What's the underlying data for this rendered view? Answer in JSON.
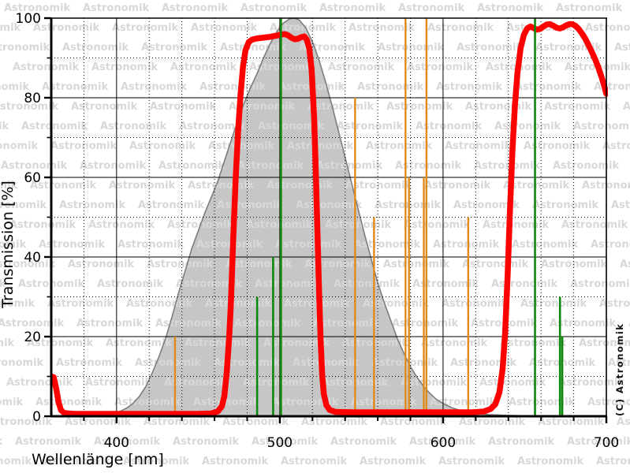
{
  "watermark": {
    "text": "Astronomik"
  },
  "copyright": "(C) Astronomik",
  "chart_data": {
    "type": "line",
    "xlabel": "Wellenlänge [nm]",
    "ylabel": "Transmission [%]",
    "xlim": [
      360,
      700
    ],
    "ylim": [
      0,
      100
    ],
    "x_major_ticks": [
      400,
      500,
      600,
      700
    ],
    "x_minor_tick_step_nm": 20,
    "y_major_ticks": [
      0,
      20,
      40,
      60,
      80,
      100
    ],
    "y_minor_tick_step": 10,
    "grid": "major solid black, minor dotted black",
    "legend": "none",
    "colors": {
      "filter_curve": "#ff0000",
      "emission_lines_green": "#0d870d",
      "pollution_lines_orange": "#e08a18",
      "eye_sensitivity_fill": "#c6c6c6",
      "eye_sensitivity_outline": "#7d7d7d",
      "watermark_gray": "#d8d8d8"
    },
    "series": [
      {
        "name": "filter-transmission-curve",
        "type": "line",
        "color": "#ff0000",
        "points": [
          [
            360,
            10
          ],
          [
            361.5,
            9.8
          ],
          [
            363,
            7
          ],
          [
            364.5,
            3.5
          ],
          [
            366,
            1.5
          ],
          [
            368,
            0.8
          ],
          [
            374,
            0.6
          ],
          [
            390,
            0.6
          ],
          [
            410,
            0.6
          ],
          [
            430,
            0.6
          ],
          [
            450,
            0.6
          ],
          [
            458,
            0.7
          ],
          [
            462,
            1.2
          ],
          [
            464.5,
            2.5
          ],
          [
            466,
            5
          ],
          [
            467.5,
            11
          ],
          [
            469,
            20
          ],
          [
            470,
            28
          ],
          [
            471.5,
            45
          ],
          [
            473,
            60
          ],
          [
            474.5,
            72
          ],
          [
            476,
            81
          ],
          [
            477.5,
            88
          ],
          [
            479,
            92
          ],
          [
            481,
            94
          ],
          [
            483,
            94.6
          ],
          [
            486,
            94.9
          ],
          [
            490,
            95.1
          ],
          [
            494,
            95.3
          ],
          [
            498,
            95.6
          ],
          [
            501,
            95.9
          ],
          [
            503,
            96
          ],
          [
            505,
            95.7
          ],
          [
            507,
            95.1
          ],
          [
            509,
            94.7
          ],
          [
            511,
            94.8
          ],
          [
            513,
            95.2
          ],
          [
            515,
            95.4
          ],
          [
            516.5,
            94.6
          ],
          [
            518,
            92.5
          ],
          [
            519.5,
            87
          ],
          [
            521,
            75
          ],
          [
            522,
            62
          ],
          [
            523,
            47
          ],
          [
            524,
            32
          ],
          [
            525,
            19
          ],
          [
            526,
            10
          ],
          [
            527,
            5.5
          ],
          [
            528.5,
            2.8
          ],
          [
            530.5,
            1.6
          ],
          [
            534,
            1.1
          ],
          [
            545,
            1
          ],
          [
            565,
            1
          ],
          [
            585,
            1
          ],
          [
            605,
            1
          ],
          [
            618,
            1
          ],
          [
            625,
            1.2
          ],
          [
            629,
            1.8
          ],
          [
            632,
            3
          ],
          [
            634.5,
            6
          ],
          [
            636.5,
            12
          ],
          [
            638,
            21
          ],
          [
            639.5,
            35
          ],
          [
            641,
            52
          ],
          [
            642.5,
            67
          ],
          [
            644,
            78
          ],
          [
            645.5,
            86
          ],
          [
            647.5,
            92.5
          ],
          [
            649.5,
            95.8
          ],
          [
            651.5,
            97.4
          ],
          [
            653.5,
            97.9
          ],
          [
            655.5,
            97.5
          ],
          [
            657.5,
            97.1
          ],
          [
            659.5,
            97.3
          ],
          [
            661.5,
            97.9
          ],
          [
            663.5,
            98.4
          ],
          [
            665.5,
            98.5
          ],
          [
            667.5,
            98.1
          ],
          [
            669.5,
            97.6
          ],
          [
            671.5,
            97.4
          ],
          [
            673.5,
            97.7
          ],
          [
            675.5,
            98.2
          ],
          [
            677.5,
            98.5
          ],
          [
            679,
            98.5
          ],
          [
            681,
            98.1
          ],
          [
            683,
            97.3
          ],
          [
            685,
            96.2
          ],
          [
            687,
            94.9
          ],
          [
            689,
            93.3
          ],
          [
            691,
            91.6
          ],
          [
            693,
            89.8
          ],
          [
            695,
            87.7
          ],
          [
            697,
            85.3
          ],
          [
            698.5,
            83.3
          ],
          [
            700,
            81
          ]
        ]
      },
      {
        "name": "eye-sensitivity-night-vision",
        "type": "area",
        "color": "#c6c6c6",
        "points": [
          [
            398,
            0
          ],
          [
            402,
            1.2
          ],
          [
            406,
            2
          ],
          [
            410,
            3.2
          ],
          [
            414,
            5
          ],
          [
            418,
            7.5
          ],
          [
            422,
            11
          ],
          [
            426,
            15
          ],
          [
            430,
            19.5
          ],
          [
            434,
            25
          ],
          [
            438,
            31
          ],
          [
            442,
            36.5
          ],
          [
            446,
            42
          ],
          [
            450,
            46.5
          ],
          [
            454,
            51
          ],
          [
            458,
            55
          ],
          [
            462,
            59
          ],
          [
            466,
            64
          ],
          [
            470,
            69
          ],
          [
            474,
            74
          ],
          [
            478,
            78.5
          ],
          [
            482,
            82.5
          ],
          [
            486,
            86
          ],
          [
            490,
            90
          ],
          [
            494,
            93.5
          ],
          [
            498,
            96.5
          ],
          [
            502,
            98.7
          ],
          [
            506,
            99.8
          ],
          [
            509,
            100
          ],
          [
            512,
            99.5
          ],
          [
            516,
            97.5
          ],
          [
            520,
            94
          ],
          [
            524,
            89.5
          ],
          [
            528,
            84
          ],
          [
            532,
            78
          ],
          [
            536,
            71.5
          ],
          [
            540,
            65
          ],
          [
            544,
            58.5
          ],
          [
            548,
            52
          ],
          [
            552,
            45.5
          ],
          [
            556,
            39.5
          ],
          [
            560,
            33.5
          ],
          [
            564,
            28.5
          ],
          [
            568,
            24
          ],
          [
            572,
            19.5
          ],
          [
            576,
            15.8
          ],
          [
            580,
            12.5
          ],
          [
            584,
            9.8
          ],
          [
            588,
            7.5
          ],
          [
            592,
            5.7
          ],
          [
            596,
            4.2
          ],
          [
            600,
            3.2
          ],
          [
            605,
            2.2
          ],
          [
            610,
            1.5
          ],
          [
            615,
            1
          ],
          [
            620,
            0.7
          ],
          [
            628,
            0.4
          ],
          [
            638,
            0.25
          ],
          [
            648,
            0.15
          ],
          [
            654,
            0.1
          ]
        ]
      },
      {
        "name": "emission-lines-green",
        "type": "vlines",
        "color": "#0d870d",
        "lines": [
          {
            "nm": 486.1,
            "percent": 30
          },
          {
            "nm": 495.9,
            "percent": 40
          },
          {
            "nm": 500.7,
            "percent": 100
          },
          {
            "nm": 656.3,
            "percent": 100
          },
          {
            "nm": 671.6,
            "percent": 30
          },
          {
            "nm": 673.0,
            "percent": 20
          }
        ]
      },
      {
        "name": "light-pollution-lines-orange",
        "type": "vlines",
        "color": "#e08a18",
        "lines": [
          {
            "nm": 435.8,
            "percent": 20
          },
          {
            "nm": 546.1,
            "percent": 80
          },
          {
            "nm": 557.7,
            "percent": 50
          },
          {
            "nm": 577.0,
            "percent": 100
          },
          {
            "nm": 579.1,
            "percent": 60
          },
          {
            "nm": 588.2,
            "percent": 60
          },
          {
            "nm": 589.8,
            "percent": 100
          },
          {
            "nm": 615.4,
            "percent": 50
          }
        ]
      }
    ]
  }
}
